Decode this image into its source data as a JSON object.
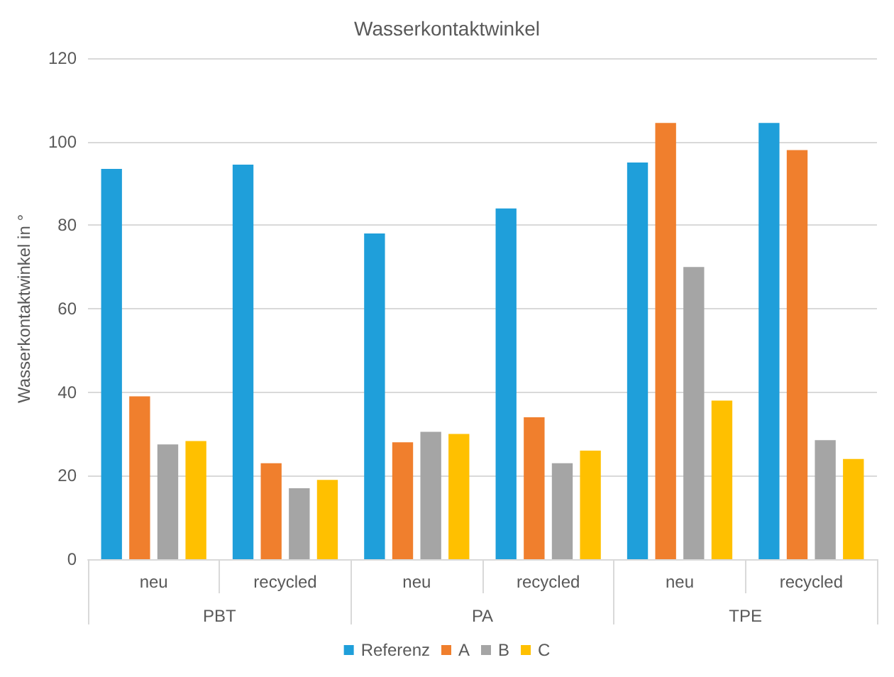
{
  "chart_data": {
    "type": "bar",
    "title": "Wasserkontaktwinkel",
    "ylabel": "Wasserkontaktwinkel in °",
    "categories": [
      "neu",
      "recycled",
      "neu",
      "recycled",
      "neu",
      "recycled"
    ],
    "annotations": [
      "PBT",
      "PA",
      "TPE"
    ],
    "series": [
      {
        "name": "Referenz",
        "color": "#1f9fda",
        "values": [
          93.5,
          94.5,
          78,
          84,
          95,
          104.5
        ]
      },
      {
        "name": "A",
        "color": "#f07f2d",
        "values": [
          39,
          23,
          28,
          34,
          104.5,
          98
        ]
      },
      {
        "name": "B",
        "color": "#a5a5a5",
        "values": [
          27.5,
          17,
          30.5,
          23,
          70,
          28.5
        ]
      },
      {
        "name": "C",
        "color": "#ffc000",
        "values": [
          28.3,
          19,
          30,
          26,
          38,
          24
        ]
      }
    ],
    "ylim": [
      0,
      120
    ],
    "yticks": [
      0,
      20,
      40,
      60,
      80,
      100,
      120
    ],
    "grid": "y",
    "legend": "bottom"
  }
}
